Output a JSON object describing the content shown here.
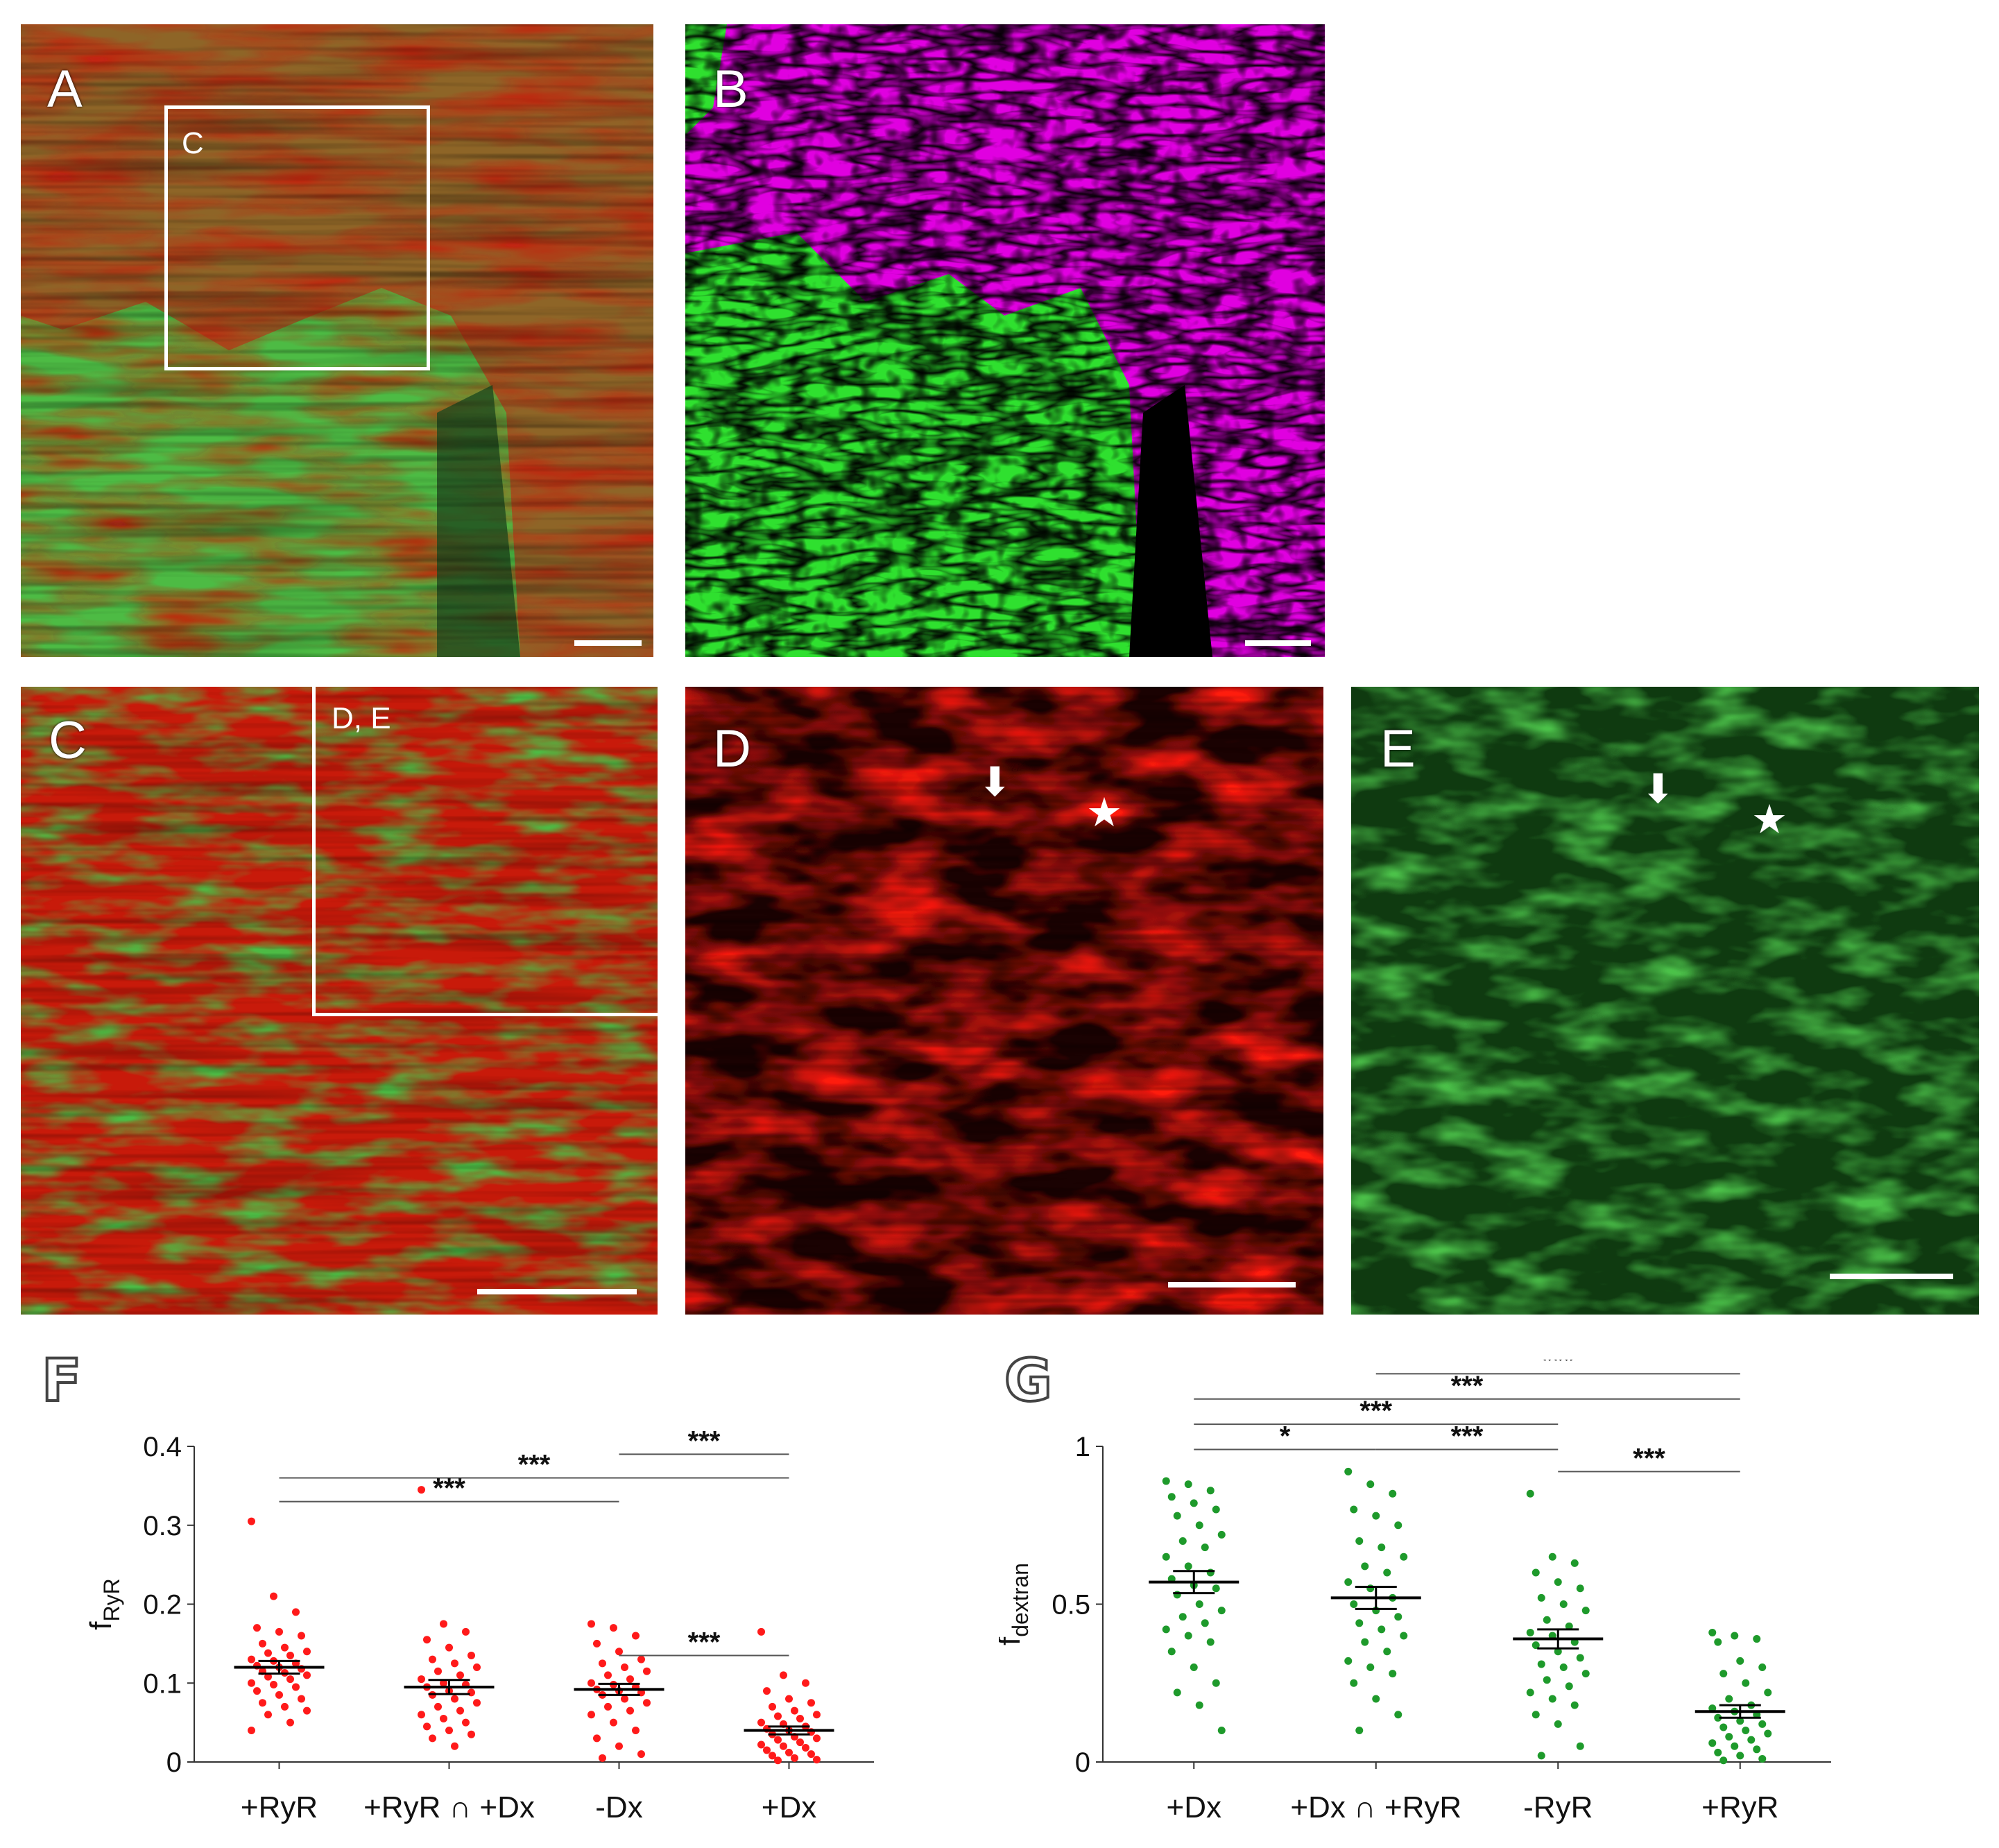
{
  "figure": {
    "panels": {
      "A": {
        "letter": "A",
        "roi_label": "C"
      },
      "B": {
        "letter": "B"
      },
      "C": {
        "letter": "C",
        "roi_label": "D, E"
      },
      "D": {
        "letter": "D",
        "arrow": "arrow-down-icon",
        "star": "star-icon"
      },
      "E": {
        "letter": "E",
        "arrow": "arrow-down-icon",
        "star": "star-icon"
      }
    },
    "colors": {
      "ryr_red": "#e3120b",
      "dextran_green": "#4fc24a",
      "magenta": "#e000e0",
      "segment_green": "#2fe02f",
      "overlap_white": "#e8e8e8",
      "dot_red": "#ff1a1a",
      "dot_green": "#1e9a2b"
    }
  },
  "chart_data": [
    {
      "type": "scatter",
      "panel_letter": "F",
      "ylabel": "f",
      "ylabel_sub": "RyR",
      "categories": [
        "+RyR",
        "+RyR ∩ +Dx",
        "-Dx",
        "+Dx"
      ],
      "ylim": [
        0,
        0.4
      ],
      "yticks": [
        0,
        0.1,
        0.2,
        0.3,
        0.4
      ],
      "ytick_labels": [
        "0",
        "0.1",
        "0.2",
        "0.3",
        "0.4"
      ],
      "means": [
        0.12,
        0.095,
        0.092,
        0.04
      ],
      "sem": [
        0.008,
        0.009,
        0.007,
        0.005
      ],
      "points": [
        [
          0.305,
          0.21,
          0.19,
          0.17,
          0.165,
          0.16,
          0.15,
          0.145,
          0.14,
          0.138,
          0.135,
          0.13,
          0.128,
          0.125,
          0.122,
          0.12,
          0.118,
          0.115,
          0.113,
          0.11,
          0.108,
          0.105,
          0.1,
          0.098,
          0.095,
          0.09,
          0.085,
          0.08,
          0.075,
          0.07,
          0.065,
          0.06,
          0.05,
          0.04
        ],
        [
          0.345,
          0.175,
          0.165,
          0.155,
          0.145,
          0.135,
          0.13,
          0.125,
          0.12,
          0.115,
          0.11,
          0.105,
          0.1,
          0.098,
          0.095,
          0.09,
          0.088,
          0.085,
          0.08,
          0.075,
          0.07,
          0.065,
          0.06,
          0.055,
          0.05,
          0.045,
          0.04,
          0.035,
          0.03,
          0.02
        ],
        [
          0.175,
          0.17,
          0.16,
          0.15,
          0.14,
          0.13,
          0.125,
          0.12,
          0.115,
          0.11,
          0.105,
          0.1,
          0.098,
          0.095,
          0.092,
          0.09,
          0.088,
          0.085,
          0.08,
          0.075,
          0.07,
          0.065,
          0.06,
          0.05,
          0.04,
          0.03,
          0.02,
          0.01,
          0.005
        ],
        [
          0.165,
          0.11,
          0.1,
          0.09,
          0.08,
          0.075,
          0.07,
          0.065,
          0.06,
          0.058,
          0.055,
          0.05,
          0.048,
          0.045,
          0.042,
          0.04,
          0.038,
          0.035,
          0.032,
          0.03,
          0.028,
          0.025,
          0.022,
          0.02,
          0.018,
          0.015,
          0.012,
          0.01,
          0.008,
          0.005,
          0.003,
          0.002
        ]
      ],
      "significance": [
        {
          "from": 2,
          "to": 3,
          "level": 0.39,
          "label": "***"
        },
        {
          "from": 0,
          "to": 3,
          "level": 0.36,
          "label": "***"
        },
        {
          "from": 0,
          "to": 2,
          "level": 0.33,
          "label": "***"
        },
        {
          "from": 2,
          "to": 3,
          "level": 0.135,
          "label": "***"
        }
      ],
      "grid": false
    },
    {
      "type": "scatter",
      "panel_letter": "G",
      "ylabel": "f",
      "ylabel_sub": "dextran",
      "categories": [
        "+Dx",
        "+Dx ∩ +RyR",
        "-RyR",
        "+RyR"
      ],
      "ylim": [
        0,
        1
      ],
      "yticks": [
        0,
        0.5,
        1
      ],
      "ytick_labels": [
        "0",
        "0.5",
        "1"
      ],
      "means": [
        0.57,
        0.52,
        0.39,
        0.16
      ],
      "sem": [
        0.035,
        0.035,
        0.03,
        0.02
      ],
      "points": [
        [
          0.89,
          0.88,
          0.86,
          0.84,
          0.82,
          0.8,
          0.78,
          0.75,
          0.72,
          0.7,
          0.68,
          0.65,
          0.62,
          0.6,
          0.58,
          0.56,
          0.55,
          0.53,
          0.5,
          0.48,
          0.46,
          0.44,
          0.42,
          0.4,
          0.38,
          0.35,
          0.3,
          0.25,
          0.22,
          0.18,
          0.1
        ],
        [
          0.92,
          0.88,
          0.85,
          0.8,
          0.78,
          0.75,
          0.7,
          0.68,
          0.65,
          0.62,
          0.6,
          0.57,
          0.55,
          0.52,
          0.5,
          0.48,
          0.46,
          0.44,
          0.42,
          0.4,
          0.38,
          0.35,
          0.32,
          0.3,
          0.28,
          0.25,
          0.2,
          0.15,
          0.1
        ],
        [
          0.85,
          0.65,
          0.63,
          0.6,
          0.57,
          0.55,
          0.52,
          0.5,
          0.48,
          0.45,
          0.43,
          0.41,
          0.4,
          0.38,
          0.37,
          0.35,
          0.33,
          0.31,
          0.3,
          0.28,
          0.26,
          0.24,
          0.22,
          0.2,
          0.18,
          0.15,
          0.12,
          0.05,
          0.02
        ],
        [
          0.41,
          0.4,
          0.39,
          0.38,
          0.32,
          0.3,
          0.28,
          0.25,
          0.22,
          0.2,
          0.18,
          0.17,
          0.16,
          0.15,
          0.14,
          0.13,
          0.12,
          0.11,
          0.1,
          0.09,
          0.08,
          0.07,
          0.06,
          0.05,
          0.04,
          0.03,
          0.02,
          0.01,
          0.005
        ]
      ],
      "significance": [
        {
          "from": 1,
          "to": 3,
          "level": 1.23,
          "label": "***"
        },
        {
          "from": 0,
          "to": 3,
          "level": 1.15,
          "label": "***"
        },
        {
          "from": 0,
          "to": 2,
          "level": 1.07,
          "label": "***"
        },
        {
          "from": 0,
          "to": 1,
          "level": 0.99,
          "label": "*"
        },
        {
          "from": 1,
          "to": 2,
          "level": 0.99,
          "label": "***"
        },
        {
          "from": 2,
          "to": 3,
          "level": 0.92,
          "label": "***"
        }
      ],
      "grid": false
    }
  ]
}
